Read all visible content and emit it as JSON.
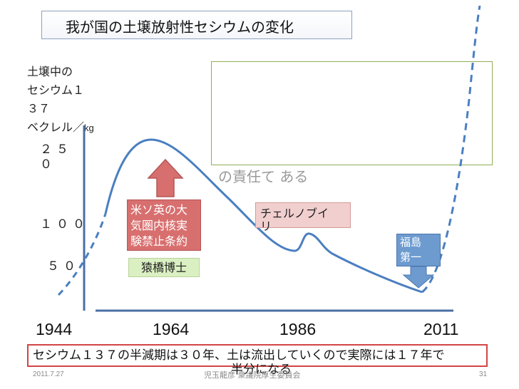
{
  "title": "我が国の土壌放射性セシウムの変化",
  "y_axis": {
    "label_lines": [
      "土壌中の",
      "セシウム１",
      "３７",
      "ベクレル／"
    ],
    "unit": "kg",
    "tick_250_lines": [
      "２５",
      "０"
    ],
    "tick_100": "１００",
    "tick_50": "５０"
  },
  "overlay_text": "の責任て ある",
  "annotations": {
    "treaty_lines": [
      "米ソ英の大",
      "気圏内核実",
      "験禁止条約"
    ],
    "chernobyl_lines": [
      "チェルノブイ",
      "リ"
    ],
    "saruhashi": "猿橋博士",
    "fukushima_lines": [
      "福島",
      "第一"
    ]
  },
  "x_axis": {
    "years": [
      "1944",
      "1964",
      "1986",
      "2011"
    ]
  },
  "footer": {
    "note_line1": "セシウム１３７の半減期は３０年、土は流出していくので実際には１７年で",
    "note_line2": "半分になる",
    "date": "2011.7.27",
    "credit": "児玉龍彦 衆議院厚生委員会",
    "page": "31"
  },
  "colors": {
    "curve": "#4a7fc0",
    "axis": "#4a6fa5",
    "treaty_box": "#d86f6f",
    "chernobyl_box": "#f2cfcf",
    "saruhashi_box": "#daf0c2",
    "fukushima_box": "#6d9bd0",
    "footer_border": "#d24545",
    "green_box_border": "#8fae56"
  }
}
